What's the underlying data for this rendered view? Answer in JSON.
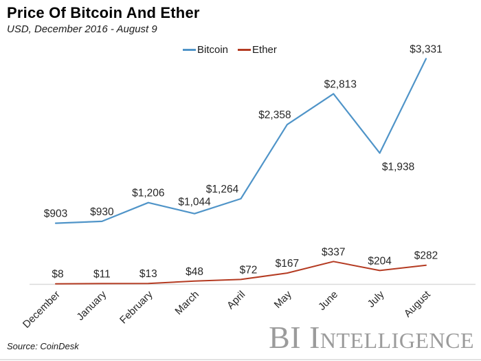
{
  "header": {
    "title": "Price Of Bitcoin And Ether",
    "subtitle": "USD, December 2016 - August 9"
  },
  "chart_data": {
    "type": "line",
    "title": "Price Of Bitcoin And Ether",
    "subtitle": "USD, December 2016 - August 9",
    "categories": [
      "December",
      "January",
      "February",
      "March",
      "April",
      "May",
      "June",
      "July",
      "August"
    ],
    "series": [
      {
        "name": "Bitcoin",
        "color": "#4f94c8",
        "values": [
          903,
          930,
          1206,
          1044,
          1264,
          2358,
          2813,
          1938,
          3331
        ],
        "labels": [
          "$903",
          "$930",
          "$1,206",
          "$1,044",
          "$1,264",
          "$2,358",
          "$2,813",
          "$1,938",
          "$3,331"
        ],
        "label_positions": [
          "above",
          "above",
          "above",
          "above",
          "above-left",
          "above-left",
          "above",
          "below",
          "above"
        ]
      },
      {
        "name": "Ether",
        "color": "#b43a21",
        "values": [
          8,
          11,
          13,
          48,
          72,
          167,
          337,
          204,
          282
        ],
        "labels": [
          "$8",
          "$11",
          "$13",
          "$48",
          "$72",
          "$167",
          "$337",
          "$204",
          "$282"
        ],
        "label_positions": [
          "above",
          "above",
          "above",
          "above",
          "above",
          "above",
          "above",
          "above",
          "above"
        ]
      }
    ],
    "ylim": [
      0,
      3600
    ],
    "xlabel": "",
    "ylabel": "",
    "grid": false,
    "legend_position": "top-center",
    "axis_line_color": "#d9d9d9",
    "label_color": "#262626"
  },
  "footer": {
    "source": "Source: CoinDesk",
    "logo": "BI Intelligence"
  }
}
